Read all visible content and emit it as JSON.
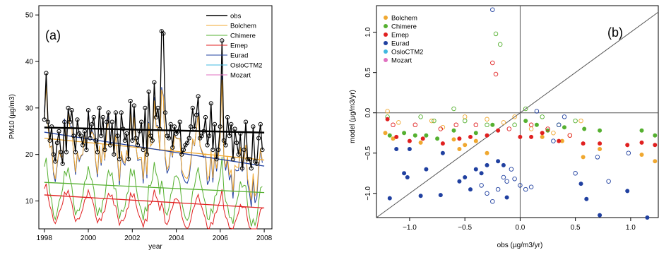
{
  "chart_data": [
    {
      "type": "line",
      "panel_label": "(a)",
      "xlabel": "year",
      "ylabel": "PM10 (µg/m3)",
      "xlim": [
        1997.75,
        2008.35
      ],
      "ylim": [
        4,
        52
      ],
      "xticks": [
        1998,
        2000,
        2002,
        2004,
        2006,
        2008
      ],
      "xtick_labels": [
        "1998",
        "2000",
        "2002",
        "2004",
        "2006",
        "2008"
      ],
      "yticks": [
        10,
        20,
        30,
        40,
        50
      ],
      "ytick_labels": [
        "10",
        "20",
        "30",
        "40",
        "50"
      ],
      "legend_position": "top-right",
      "legend": [
        "obs",
        "Bolchem",
        "Chimere",
        "Emep",
        "Eurad",
        "OsloCTM2",
        "Mozart"
      ],
      "colors": {
        "obs": "#000000",
        "Bolchem": "#f0a830",
        "Chimere": "#55b030",
        "Emep": "#e02020",
        "Eurad": "#2040a0",
        "OsloCTM2": "#40b8e0",
        "Mozart": "#e070c0"
      },
      "obs": {
        "x_start": 1998.0,
        "x_step": 0.0833,
        "values": [
          27.5,
          37.5,
          27,
          23,
          26,
          20,
          18.5,
          22.5,
          25,
          20.5,
          18,
          27,
          20.5,
          30,
          27,
          29.5,
          24,
          20.5,
          27.5,
          24.5,
          24,
          22,
          25,
          21,
          29.5,
          23.5,
          26.5,
          28,
          23,
          20.5,
          30,
          24,
          28,
          21,
          27,
          29,
          22,
          27,
          20,
          29,
          24,
          19,
          29,
          25.5,
          23,
          24.5,
          19,
          31.5,
          23,
          30.5,
          23.5,
          22,
          25,
          27,
          21,
          30,
          20,
          33.5,
          24,
          23,
          35.5,
          28,
          30,
          25.5,
          46.5,
          46,
          29,
          24,
          23.5,
          26.5,
          21.5,
          26,
          24.5,
          25,
          27,
          20,
          21,
          22,
          22.5,
          23.5,
          26,
          30,
          25.5,
          28.5,
          32.5,
          23.5,
          24,
          25,
          28,
          22,
          24,
          31,
          21,
          26.5,
          19,
          21,
          26,
          44.5,
          23,
          22,
          28,
          24,
          26.5,
          19,
          25.5,
          22.5,
          20,
          24.5,
          17,
          21,
          27,
          19,
          19,
          17,
          26,
          18.5,
          18,
          23.5,
          26.5,
          21
        ]
      },
      "trends": [
        {
          "name": "obs",
          "from": [
            1998,
            25.8
          ],
          "to": [
            2008,
            24.7
          ]
        },
        {
          "name": "Bolchem",
          "from": [
            1998,
            23.5
          ],
          "to": [
            2008,
            18.8
          ]
        },
        {
          "name": "Eurad",
          "from": [
            1998,
            24.8
          ],
          "to": [
            2008,
            17.5
          ]
        },
        {
          "name": "Chimere",
          "from": [
            1998,
            14.0
          ],
          "to": [
            2008,
            11.8
          ]
        },
        {
          "name": "Emep",
          "from": [
            1998,
            11.3
          ],
          "to": [
            2008,
            8.5
          ]
        }
      ]
    },
    {
      "type": "scatter",
      "panel_label": "(b)",
      "xlabel": "obs (µg/m3/yr)",
      "ylabel": "model (µg/m3/yr)",
      "xlim": [
        -1.3,
        1.25
      ],
      "ylim": [
        -1.3,
        1.33
      ],
      "xticks": [
        -1.0,
        -0.5,
        0.0,
        0.5,
        1.0
      ],
      "xtick_labels": [
        "−1.0",
        "−0.5",
        "0.0",
        "0.5",
        "1.0"
      ],
      "yticks": [
        -1.0,
        -0.5,
        0.0,
        0.5,
        1.0
      ],
      "ytick_labels": [
        "−1.0",
        "−0.5",
        "0.0",
        "0.5",
        "1.0"
      ],
      "legend_position": "top-left",
      "legend": [
        "Bolchem",
        "Chimere",
        "Emep",
        "Eurad",
        "OsloCTM2",
        "Mozart"
      ],
      "colors": {
        "Bolchem": "#f0a830",
        "Chimere": "#55b030",
        "Emep": "#e02020",
        "Eurad": "#2040a0",
        "OsloCTM2": "#40b8e0",
        "Mozart": "#e070c0"
      },
      "series": [
        {
          "name": "Bolchem",
          "filled": [
            [
              -1.22,
              -0.25
            ],
            [
              -1.15,
              -0.32
            ],
            [
              -0.9,
              -0.37
            ],
            [
              -0.6,
              -0.33
            ],
            [
              -0.55,
              -0.45
            ],
            [
              -0.5,
              -0.4
            ],
            [
              -0.4,
              -0.35
            ],
            [
              -0.3,
              -0.5
            ],
            [
              0.2,
              -0.3
            ],
            [
              0.38,
              -0.35
            ],
            [
              0.57,
              -0.55
            ],
            [
              0.72,
              -0.45
            ],
            [
              1.1,
              -0.52
            ],
            [
              1.22,
              -0.6
            ]
          ],
          "hollow": [
            [
              -1.2,
              0.02
            ],
            [
              -1.1,
              -0.12
            ],
            [
              -0.8,
              -0.1
            ],
            [
              -0.7,
              -0.18
            ],
            [
              -0.5,
              -0.05
            ],
            [
              -0.3,
              -0.08
            ],
            [
              -0.15,
              -0.12
            ],
            [
              -0.05,
              -0.05
            ],
            [
              0.1,
              -0.2
            ],
            [
              0.3,
              -0.25
            ],
            [
              0.45,
              -0.28
            ],
            [
              0.55,
              -0.1
            ]
          ]
        },
        {
          "name": "Chimere",
          "filled": [
            [
              -1.18,
              -0.28
            ],
            [
              -1.05,
              -0.25
            ],
            [
              -0.95,
              -0.28
            ],
            [
              -0.85,
              -0.28
            ],
            [
              -0.75,
              -0.32
            ],
            [
              -0.6,
              -0.22
            ],
            [
              -0.4,
              -0.25
            ],
            [
              -0.25,
              -0.15
            ],
            [
              0.05,
              -0.1
            ],
            [
              0.15,
              -0.15
            ],
            [
              0.25,
              -0.22
            ],
            [
              0.4,
              -0.18
            ],
            [
              0.58,
              -0.2
            ],
            [
              0.72,
              -0.22
            ],
            [
              1.1,
              -0.22
            ],
            [
              1.22,
              -0.28
            ]
          ],
          "hollow": [
            [
              -1.2,
              -0.05
            ],
            [
              -0.9,
              -0.05
            ],
            [
              -0.78,
              -0.1
            ],
            [
              -0.6,
              0.05
            ],
            [
              -0.5,
              -0.1
            ],
            [
              -0.3,
              -0.15
            ],
            [
              -0.22,
              0.98
            ],
            [
              -0.18,
              0.85
            ],
            [
              -0.05,
              -0.15
            ],
            [
              0.05,
              0.05
            ],
            [
              0.2,
              -0.05
            ],
            [
              0.35,
              -0.15
            ],
            [
              0.5,
              -0.1
            ]
          ]
        },
        {
          "name": "Emep",
          "filled": [
            [
              -1.2,
              -0.08
            ],
            [
              -1.12,
              -0.3
            ],
            [
              -1.0,
              -0.35
            ],
            [
              -0.88,
              -0.32
            ],
            [
              -0.7,
              -0.38
            ],
            [
              -0.55,
              -0.32
            ],
            [
              -0.45,
              -0.3
            ],
            [
              -0.3,
              -0.28
            ],
            [
              -0.2,
              -0.22
            ],
            [
              0.0,
              -0.3
            ],
            [
              0.1,
              -0.3
            ],
            [
              0.2,
              -0.25
            ],
            [
              0.35,
              -0.35
            ],
            [
              0.57,
              -0.38
            ],
            [
              0.72,
              -0.38
            ],
            [
              0.97,
              -0.4
            ],
            [
              1.1,
              -0.37
            ],
            [
              1.22,
              -0.4
            ]
          ],
          "hollow": [
            [
              -1.15,
              -0.15
            ],
            [
              -0.95,
              -0.15
            ],
            [
              -0.72,
              -0.2
            ],
            [
              -0.58,
              -0.15
            ],
            [
              -0.4,
              -0.15
            ],
            [
              -0.25,
              0.62
            ],
            [
              -0.22,
              0.48
            ],
            [
              -0.1,
              -0.2
            ],
            [
              0.1,
              -0.15
            ],
            [
              0.25,
              -0.2
            ],
            [
              0.45,
              -0.28
            ]
          ]
        },
        {
          "name": "Eurad",
          "filled": [
            [
              -1.18,
              -1.06
            ],
            [
              -1.12,
              -0.45
            ],
            [
              -1.05,
              -0.75
            ],
            [
              -1.02,
              -0.8
            ],
            [
              -1.0,
              -0.45
            ],
            [
              -0.9,
              -1.03
            ],
            [
              -0.85,
              -0.7
            ],
            [
              -0.72,
              -1.02
            ],
            [
              -0.7,
              -0.5
            ],
            [
              -0.55,
              -0.85
            ],
            [
              -0.5,
              -0.8
            ],
            [
              -0.45,
              -0.95
            ],
            [
              -0.4,
              -0.7
            ],
            [
              -0.35,
              -0.75
            ],
            [
              -0.3,
              -0.65
            ],
            [
              -0.2,
              -0.6
            ],
            [
              -0.15,
              -0.65
            ],
            [
              -0.12,
              -1.05
            ],
            [
              0.55,
              -0.88
            ],
            [
              0.6,
              -1.07
            ],
            [
              0.72,
              -1.27
            ],
            [
              0.97,
              -0.97
            ],
            [
              1.15,
              -1.3
            ]
          ],
          "hollow": [
            [
              -0.25,
              1.28
            ],
            [
              -0.35,
              -0.9
            ],
            [
              -0.3,
              -1.0
            ],
            [
              -0.25,
              -1.1
            ],
            [
              -0.2,
              -0.95
            ],
            [
              -0.15,
              -0.8
            ],
            [
              -0.12,
              -0.85
            ],
            [
              -0.08,
              -0.7
            ],
            [
              -0.05,
              -0.82
            ],
            [
              0.0,
              -0.9
            ],
            [
              0.05,
              -0.95
            ],
            [
              0.1,
              -0.92
            ],
            [
              0.15,
              0.02
            ],
            [
              0.3,
              -0.35
            ],
            [
              0.35,
              -0.15
            ],
            [
              0.4,
              -0.05
            ],
            [
              0.5,
              -0.75
            ],
            [
              0.7,
              -0.55
            ],
            [
              0.8,
              -0.85
            ],
            [
              0.98,
              -0.5
            ]
          ]
        }
      ]
    }
  ]
}
